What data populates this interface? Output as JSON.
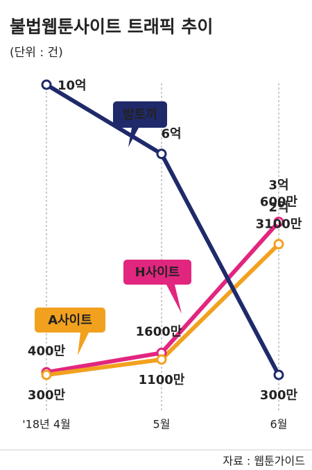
{
  "chart_data": {
    "type": "line",
    "title": "불법웹툰사이트 트래픽 추이",
    "subtitle": "(단위 : 건)",
    "source": "자료 : 웹툰가이드",
    "categories": [
      "'18년 4월",
      "5월",
      "6월"
    ],
    "scale": "sqrt",
    "series": [
      {
        "name": "밤토끼",
        "color": "#1f2a6b",
        "values": [
          1000000000,
          600000000,
          3000000
        ],
        "value_labels": [
          "10억",
          "6억",
          "300만"
        ]
      },
      {
        "name": "H사이트",
        "color": "#e2267f",
        "values": [
          4000000,
          16000000,
          306000000
        ],
        "value_labels": [
          "400만",
          "1600만",
          "3억 600만"
        ]
      },
      {
        "name": "A사이트",
        "color": "#f2a11f",
        "values": [
          3000000,
          11000000,
          231000000
        ],
        "value_labels": [
          "300만",
          "1100만",
          "2억 3100만"
        ]
      }
    ]
  }
}
